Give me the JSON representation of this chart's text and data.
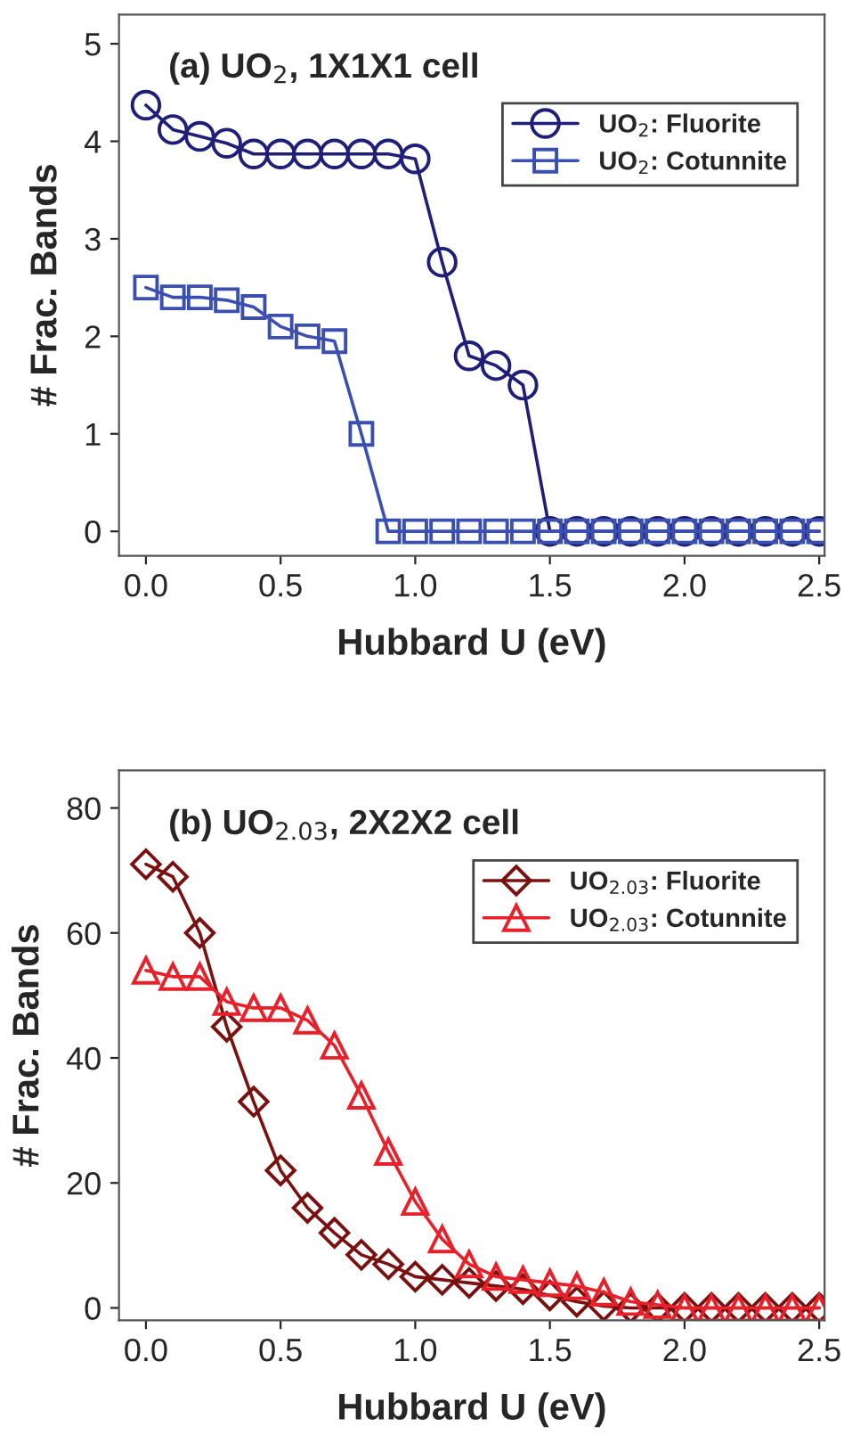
{
  "chart_data": [
    {
      "type": "line",
      "title": "(a) UO$_{2}$, 1X1X1 cell",
      "xlabel": "Hubbard U (eV)",
      "ylabel": "# Frac. Bands",
      "xlim": [
        -0.1,
        2.52
      ],
      "xticks": [
        {
          "value": 0,
          "label": "0.0"
        },
        0.5,
        {
          "value": 1,
          "label": "1.0"
        },
        1.5,
        {
          "value": 2,
          "label": "2.0"
        },
        2.5
      ],
      "ylim": [
        -0.25,
        5.3
      ],
      "yticks": [
        0,
        1,
        2,
        3,
        4,
        5
      ],
      "grid": false,
      "legend": "top right",
      "x": [
        0,
        0.1,
        0.2,
        0.3,
        0.4,
        0.5,
        0.6,
        0.7,
        0.8,
        0.9,
        1.0,
        1.1,
        1.2,
        1.3,
        1.4,
        1.5,
        1.6,
        1.7,
        1.8,
        1.9,
        2.0,
        2.1,
        2.2,
        2.3,
        2.4,
        2.5
      ],
      "series": [
        {
          "name": "UO$_{2}$: Fluorite",
          "color": "#1f1f7a",
          "marker": "circle",
          "values": [
            4.37,
            4.12,
            4.05,
            3.98,
            3.87,
            3.87,
            3.87,
            3.87,
            3.87,
            3.87,
            3.82,
            2.76,
            1.8,
            1.7,
            1.5,
            0,
            0,
            0,
            0,
            0,
            0,
            0,
            0,
            0,
            0,
            0
          ]
        },
        {
          "name": "UO$_{2}$: Cotunnite",
          "color": "#3b4fb0",
          "marker": "square",
          "values": [
            2.5,
            2.4,
            2.4,
            2.37,
            2.3,
            2.1,
            2.0,
            1.95,
            1.0,
            0,
            0,
            0,
            0,
            0,
            0,
            0,
            0,
            0,
            0,
            0,
            0,
            0,
            0,
            0,
            0,
            0
          ]
        }
      ]
    },
    {
      "type": "line",
      "title": "(b) UO$_{2.03}$, 2X2X2 cell",
      "xlabel": "Hubbard U (eV)",
      "ylabel": "# Frac. Bands",
      "xlim": [
        -0.1,
        2.52
      ],
      "xticks": [
        {
          "value": 0,
          "label": "0.0"
        },
        0.5,
        {
          "value": 1,
          "label": "1.0"
        },
        1.5,
        {
          "value": 2,
          "label": "2.0"
        },
        2.5
      ],
      "ylim": [
        -2,
        86
      ],
      "yticks": [
        0,
        20,
        40,
        60,
        80
      ],
      "grid": false,
      "legend": "top right",
      "x": [
        0,
        0.1,
        0.2,
        0.3,
        0.4,
        0.5,
        0.6,
        0.7,
        0.8,
        0.9,
        1.0,
        1.1,
        1.2,
        1.3,
        1.4,
        1.5,
        1.6,
        1.7,
        1.8,
        1.9,
        2.0,
        2.1,
        2.2,
        2.3,
        2.4,
        2.5
      ],
      "series": [
        {
          "name": "UO$_{2.03}$: Fluorite",
          "color": "#7a1010",
          "marker": "diamond",
          "values": [
            71,
            69,
            60,
            45,
            33,
            22,
            16,
            12,
            8.5,
            7,
            5,
            4.5,
            4,
            3.5,
            3,
            2,
            1,
            0.3,
            0,
            0,
            0,
            0,
            0,
            0,
            0,
            0
          ]
        },
        {
          "name": "UO$_{2.03}$: Cotunnite",
          "color": "#e8202a",
          "marker": "triangle",
          "values": [
            54,
            53,
            53,
            49,
            48,
            48,
            46,
            42,
            34,
            25,
            17,
            11,
            7,
            5,
            4.5,
            4,
            3.5,
            2.5,
            1,
            0.5,
            0,
            0,
            0,
            0,
            0,
            0
          ]
        }
      ]
    }
  ]
}
